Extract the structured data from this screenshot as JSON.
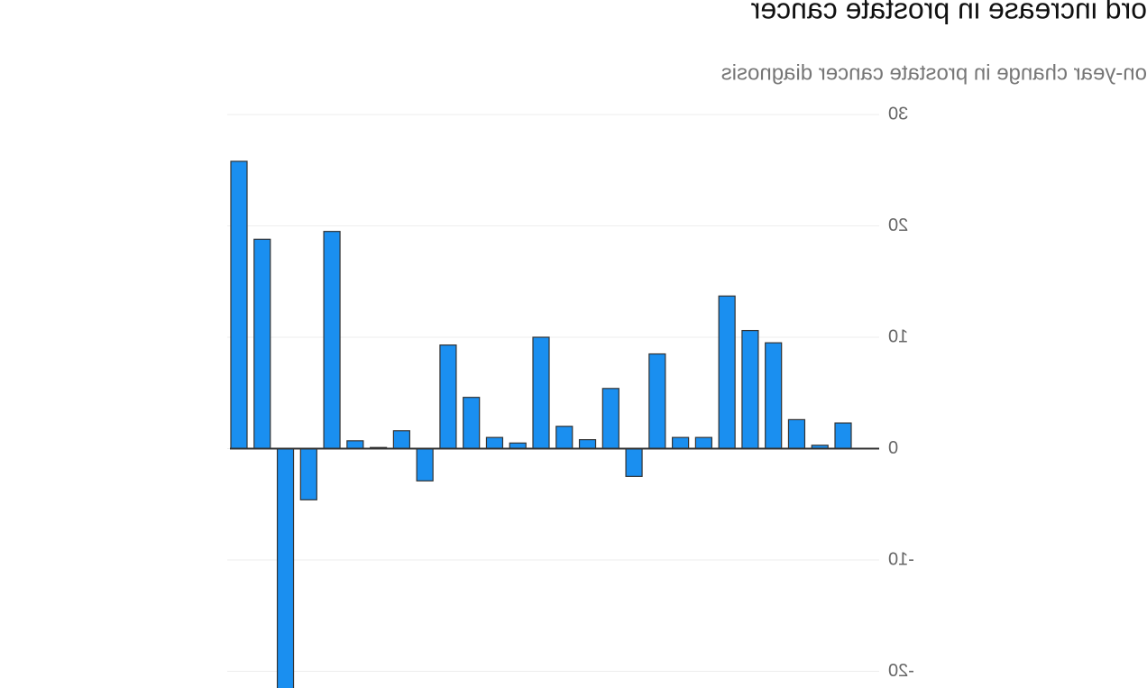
{
  "chart_data": {
    "type": "bar",
    "title": "ord increase in prostate cancer",
    "subtitle": "on-year change in prostate cancer diagnosis",
    "values": [
      2.3,
      0.3,
      2.6,
      9.5,
      10.6,
      13.7,
      1.0,
      1.0,
      8.5,
      -2.5,
      5.4,
      0.8,
      2,
      10,
      0.5,
      1.0,
      4.6,
      9.3,
      -2.9,
      1.6,
      0.1,
      0.7,
      19.5,
      -4.6,
      -23,
      18.8,
      25.8
    ],
    "color": "#1a8ff0",
    "ylim": [
      -21.5,
      30
    ],
    "yticks": [
      -20,
      -10,
      0,
      10,
      20,
      30
    ],
    "grid": true,
    "mirrored": true
  }
}
